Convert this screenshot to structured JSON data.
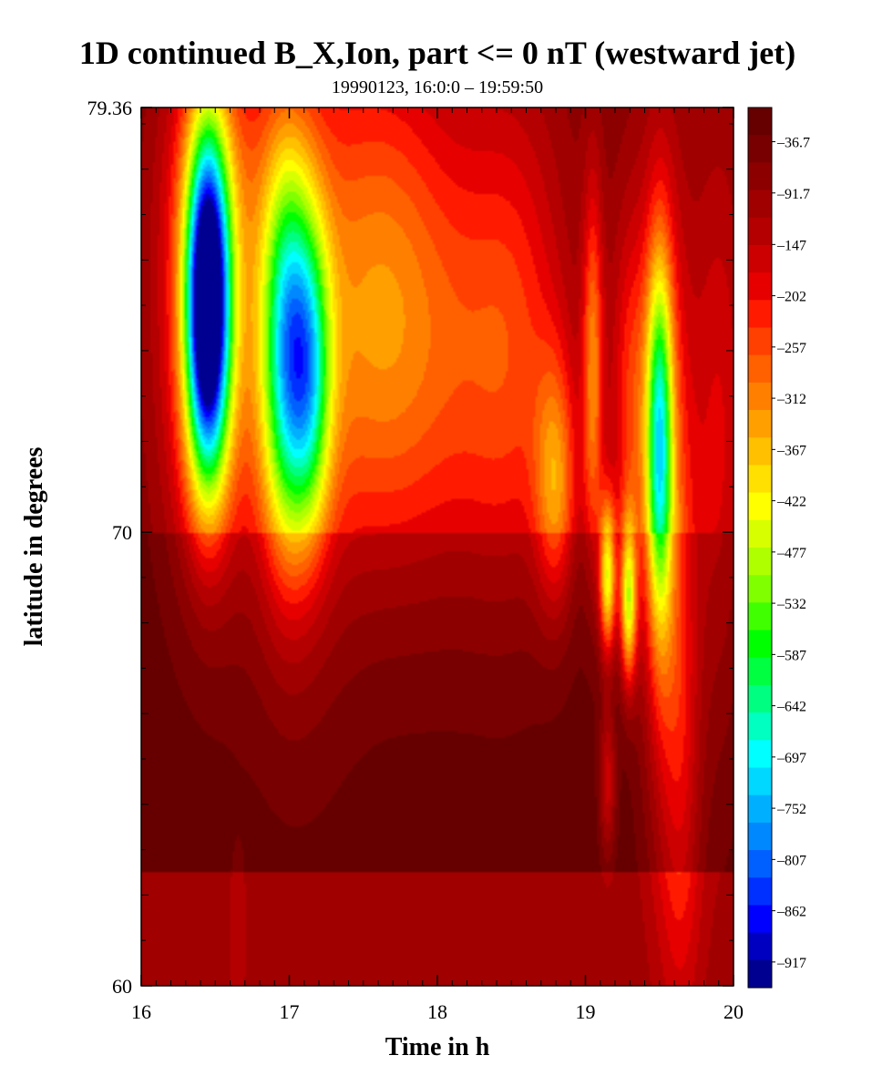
{
  "chart_data": {
    "type": "heatmap",
    "title": "1D continued B_X,Ion, part <= 0 nT (westward jet)",
    "subtitle": "19990123, 16:0:0 – 19:59:50",
    "xlabel": "Time in h",
    "ylabel": "latitude in degrees",
    "xlim": [
      16,
      20
    ],
    "ylim": [
      60,
      79.36
    ],
    "x_ticks": [
      "16",
      "17",
      "18",
      "19",
      "20"
    ],
    "y_ticks": [
      "60",
      "70",
      "79.36"
    ],
    "colorbar": {
      "vmin": -944.5,
      "vmax": 0,
      "labels": [
        "-36.7",
        "-91.7",
        "-147",
        "-202",
        "-257",
        "-312",
        "-367",
        "-422",
        "-477",
        "-532",
        "-587",
        "-642",
        "-697",
        "-752",
        "-807",
        "-862",
        "-917"
      ],
      "label_values": [
        -36.7,
        -91.7,
        -147,
        -202,
        -257,
        -312,
        -367,
        -422,
        -477,
        -532,
        -587,
        -642,
        -697,
        -752,
        -807,
        -862,
        -917
      ],
      "colors": [
        "#660000",
        "#780000",
        "#8c0000",
        "#a00000",
        "#b40000",
        "#cc0000",
        "#e60000",
        "#ff1a00",
        "#ff4000",
        "#ff6000",
        "#ff8000",
        "#ffa000",
        "#ffc000",
        "#ffe000",
        "#ffff00",
        "#d8ff00",
        "#b0ff00",
        "#80ff00",
        "#40ff00",
        "#00ff00",
        "#00ff40",
        "#00ff80",
        "#00ffc0",
        "#00ffff",
        "#00d8ff",
        "#00b0ff",
        "#0088ff",
        "#0060ff",
        "#0030ff",
        "#0000ff",
        "#0000c0",
        "#000090"
      ]
    },
    "background_values": [
      {
        "lat_min": 60,
        "lat_max": 62.5,
        "value": -95
      },
      {
        "lat_min": 62.5,
        "lat_max": 70,
        "value": -8
      },
      {
        "lat_min": 70,
        "lat_max": 79.36,
        "value": -60
      }
    ],
    "blobs": [
      {
        "t": 16.45,
        "lat": 75.0,
        "dt": 0.1,
        "dlat": 2.6,
        "amp": -880
      },
      {
        "t": 16.45,
        "lat": 75.0,
        "dt": 0.22,
        "dlat": 4.0,
        "amp": -260
      },
      {
        "t": 16.98,
        "lat": 74.0,
        "dt": 0.12,
        "dlat": 3.0,
        "amp": -460
      },
      {
        "t": 17.15,
        "lat": 73.5,
        "dt": 0.1,
        "dlat": 2.4,
        "amp": -320
      },
      {
        "t": 17.05,
        "lat": 74.0,
        "dt": 0.28,
        "dlat": 5.0,
        "amp": -180
      },
      {
        "t": 17.6,
        "lat": 75.0,
        "dt": 0.3,
        "dlat": 4.0,
        "amp": -200
      },
      {
        "t": 18.1,
        "lat": 74.0,
        "dt": 0.35,
        "dlat": 4.0,
        "amp": -140
      },
      {
        "t": 18.55,
        "lat": 74.0,
        "dt": 0.25,
        "dlat": 4.0,
        "amp": -130
      },
      {
        "t": 18.8,
        "lat": 71.0,
        "dt": 0.1,
        "dlat": 2.0,
        "amp": -220
      },
      {
        "t": 19.05,
        "lat": 73.5,
        "dt": 0.05,
        "dlat": 3.0,
        "amp": -230
      },
      {
        "t": 19.15,
        "lat": 69.0,
        "dt": 0.04,
        "dlat": 1.2,
        "amp": -400
      },
      {
        "t": 19.29,
        "lat": 68.5,
        "dt": 0.04,
        "dlat": 1.3,
        "amp": -390
      },
      {
        "t": 19.5,
        "lat": 72.0,
        "dt": 0.06,
        "dlat": 2.8,
        "amp": -430
      },
      {
        "t": 19.52,
        "lat": 71.0,
        "dt": 0.12,
        "dlat": 5.0,
        "amp": -220
      },
      {
        "t": 19.3,
        "lat": 73.0,
        "dt": 0.1,
        "dlat": 3.0,
        "amp": -150
      },
      {
        "t": 19.15,
        "lat": 64.5,
        "dt": 0.04,
        "dlat": 1.2,
        "amp": -150
      },
      {
        "t": 19.65,
        "lat": 65.0,
        "dt": 0.1,
        "dlat": 4.0,
        "amp": -130
      },
      {
        "t": 19.9,
        "lat": 72.0,
        "dt": 0.15,
        "dlat": 5.0,
        "amp": -120
      },
      {
        "t": 16.6,
        "lat": 78.0,
        "dt": 0.3,
        "dlat": 2.0,
        "amp": -40
      },
      {
        "t": 16.65,
        "lat": 61.0,
        "dt": 0.05,
        "dlat": 1.5,
        "amp": -40
      }
    ]
  }
}
